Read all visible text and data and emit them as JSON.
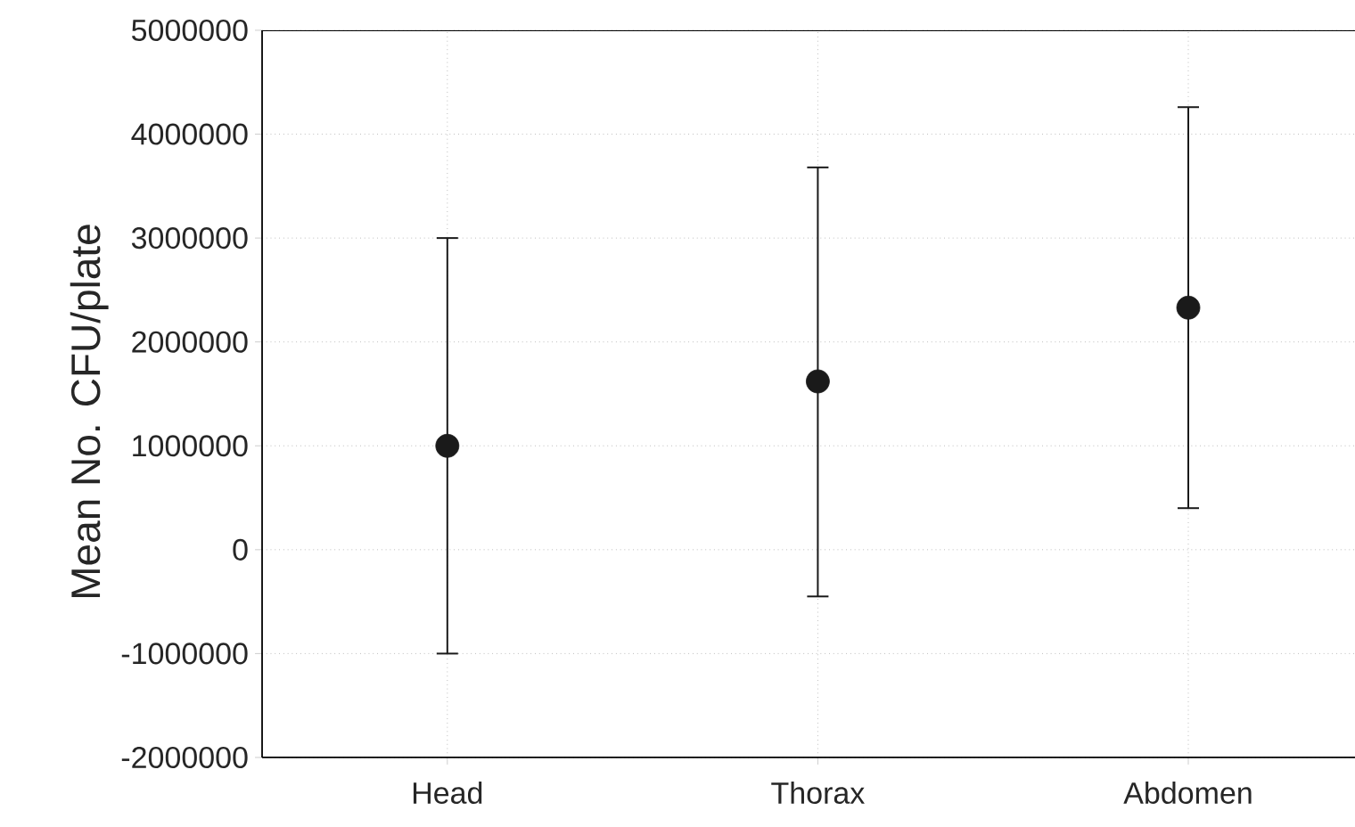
{
  "chart_data": {
    "type": "scatter",
    "ylabel": "Mean No. CFU/plate",
    "categories": [
      "Head",
      "Thorax",
      "Abdomen"
    ],
    "values": [
      1000000,
      1620000,
      2330000
    ],
    "errors": [
      [
        -1000000,
        3000000
      ],
      [
        -450000,
        3680000
      ],
      [
        400000,
        4260000
      ]
    ],
    "color": "#1a1a1a",
    "marker": "circle",
    "ylim": [
      -2000000,
      5000000
    ],
    "yticks": [
      -2000000,
      -1000000,
      0,
      1000000,
      2000000,
      3000000,
      4000000,
      5000000
    ],
    "grid": true
  }
}
